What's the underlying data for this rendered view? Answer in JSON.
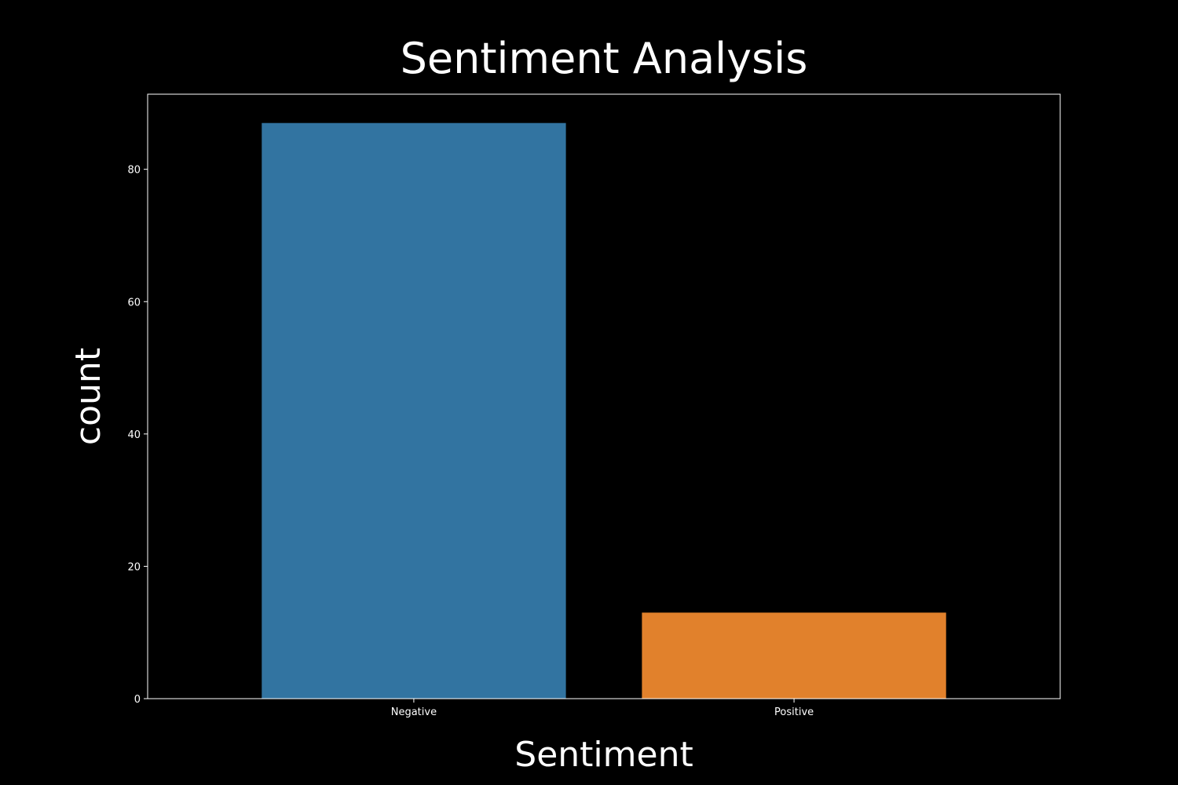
{
  "chart_data": {
    "type": "bar",
    "title": "Sentiment Analysis",
    "xlabel": "Sentiment",
    "ylabel": "count",
    "categories": [
      "Negative",
      "Positive"
    ],
    "values": [
      87,
      13
    ],
    "colors": [
      "#3274a1",
      "#e1812c"
    ],
    "ylim": [
      0,
      91.35
    ],
    "yticks": [
      0,
      20,
      40,
      60,
      80
    ],
    "grid": false,
    "background": "#000000",
    "foreground": "#ffffff"
  }
}
